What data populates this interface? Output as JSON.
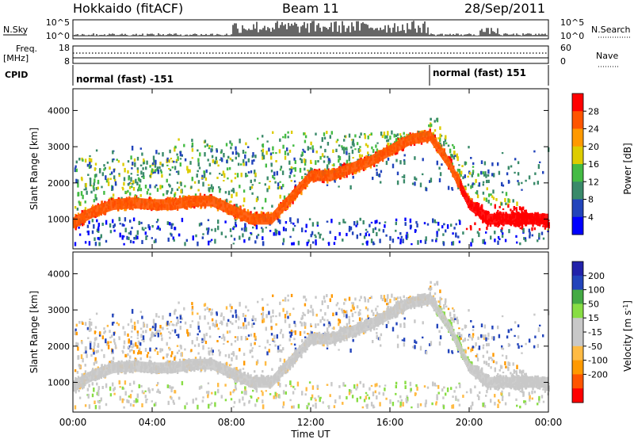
{
  "header": {
    "station": "Hokkaido (fitACF)",
    "beam": "Beam 11",
    "date": "28/Sep/2011"
  },
  "nsky_panel": {
    "label": "N.Sky",
    "right_label": "N.Search",
    "left_ticks": [
      "10^5",
      "10^0"
    ],
    "right_ticks": [
      "10^5",
      "10^0"
    ]
  },
  "freq_panel": {
    "label_line1": "Freq.",
    "label_line2": "[MHz]",
    "right_label": "Nave",
    "left_ticks": [
      "18",
      "8"
    ],
    "right_ticks": [
      "60",
      "0"
    ]
  },
  "cpid_panel": {
    "label": "CPID",
    "segments": [
      {
        "label": "normal (fast) -151",
        "start_hour": 0
      },
      {
        "label": "normal (fast) 151",
        "start_hour": 18
      }
    ]
  },
  "colors": {
    "power_scale": [
      "#0000ff",
      "#2244bb",
      "#3a8a6a",
      "#44bb44",
      "#ddcc00",
      "#ff9900",
      "#ff5500",
      "#ff0000"
    ],
    "velocity_scale": [
      "#ff0000",
      "#ff5500",
      "#ff9900",
      "#ffbb44",
      "#c8c8c8",
      "#c8c8c8",
      "#88dd44",
      "#44aa44",
      "#2244bb",
      "#2222aa"
    ]
  },
  "chart_data": [
    {
      "type": "heatmap",
      "title": "",
      "xlabel": "Time UT",
      "ylabel": "Slant Range [km]",
      "xlim": [
        0,
        24
      ],
      "ylim": [
        180,
        4600
      ],
      "x_tick_labels": [
        "00:00",
        "04:00",
        "08:00",
        "12:00",
        "16:00",
        "20:00",
        "00:00"
      ],
      "x_tick_hours": [
        0,
        4,
        8,
        12,
        16,
        20,
        24
      ],
      "y_ticks": [
        1000,
        2000,
        3000,
        4000
      ],
      "colorbar": {
        "title": "Power [dB]",
        "ticks": [
          4,
          8,
          12,
          16,
          20,
          24,
          28
        ]
      },
      "features": [
        {
          "name": "main-echo-band",
          "hours": [
            0,
            1,
            2,
            3,
            4,
            5,
            6,
            7,
            8,
            9,
            10,
            11,
            12,
            13,
            14,
            15,
            16,
            17,
            18,
            19,
            20,
            21,
            22,
            23,
            24
          ],
          "range_km": [
            900,
            1200,
            1400,
            1450,
            1400,
            1400,
            1500,
            1500,
            1250,
            1000,
            1000,
            1600,
            2200,
            2200,
            2400,
            2600,
            2900,
            3200,
            3300,
            2500,
            1400,
            1000,
            1000,
            1000,
            1000
          ]
        }
      ]
    },
    {
      "type": "heatmap",
      "title": "",
      "xlabel": "Time UT",
      "ylabel": "Slant Range [km]",
      "xlim": [
        0,
        24
      ],
      "ylim": [
        180,
        4600
      ],
      "x_tick_labels": [
        "00:00",
        "04:00",
        "08:00",
        "12:00",
        "16:00",
        "20:00",
        "00:00"
      ],
      "x_tick_hours": [
        0,
        4,
        8,
        12,
        16,
        20,
        24
      ],
      "y_ticks": [
        1000,
        2000,
        3000,
        4000
      ],
      "colorbar": {
        "title": "Velocity [m s",
        "title_sup": "-1",
        "title_close": "]",
        "ticks": [
          "200",
          "100",
          "50",
          "15",
          "-15",
          "-50",
          "-100",
          "-200"
        ]
      }
    }
  ]
}
